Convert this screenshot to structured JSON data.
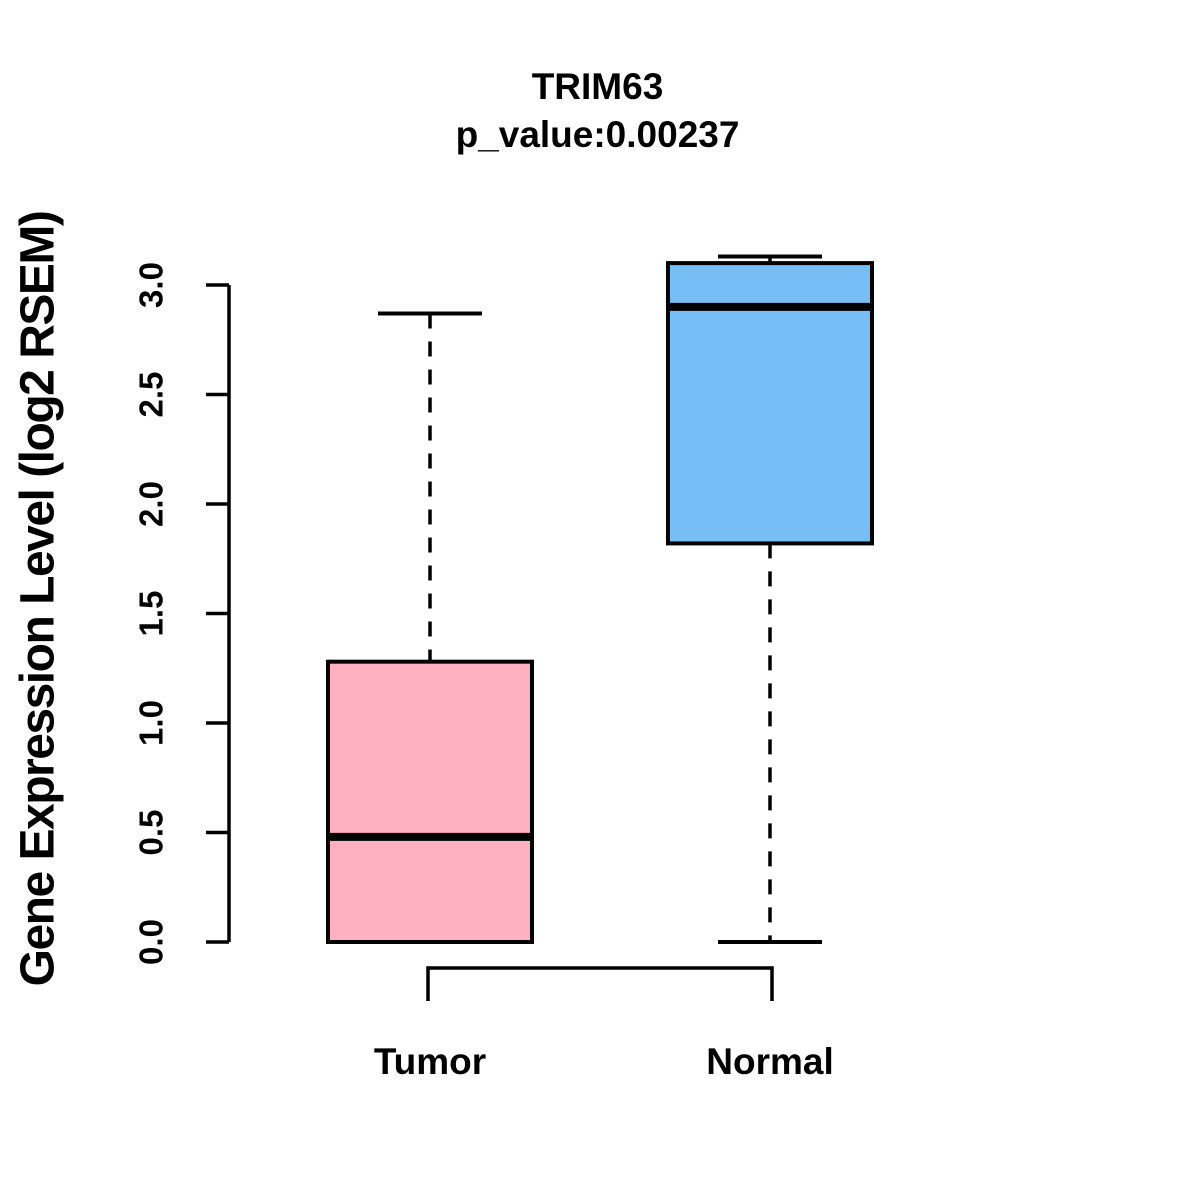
{
  "chart_data": {
    "type": "boxplot",
    "title": "TRIM63",
    "subtitle": "p_value:0.00237",
    "ylabel": "Gene Expression Level (log2 RSEM)",
    "xlabel": "",
    "ylim": [
      0.0,
      3.15
    ],
    "yticks": [
      "0.0",
      "0.5",
      "1.0",
      "1.5",
      "2.0",
      "2.5",
      "3.0"
    ],
    "grid": false,
    "axis_color": "#000000",
    "box_border_color": "#000000",
    "median_color": "#000000",
    "groups": [
      {
        "label": "Tumor",
        "color": "#FFB1C1",
        "stats": {
          "lower_whisker": 0.0,
          "q1": 0.0,
          "median": 0.48,
          "q3": 1.28,
          "upper_whisker": 2.87
        }
      },
      {
        "label": "Normal",
        "color": "#76BEF5",
        "stats": {
          "lower_whisker": 0.0,
          "q1": 1.82,
          "median": 2.9,
          "q3": 3.1,
          "upper_whisker": 3.13
        }
      }
    ],
    "comparison_bracket": {
      "between": [
        "Tumor",
        "Normal"
      ]
    }
  }
}
